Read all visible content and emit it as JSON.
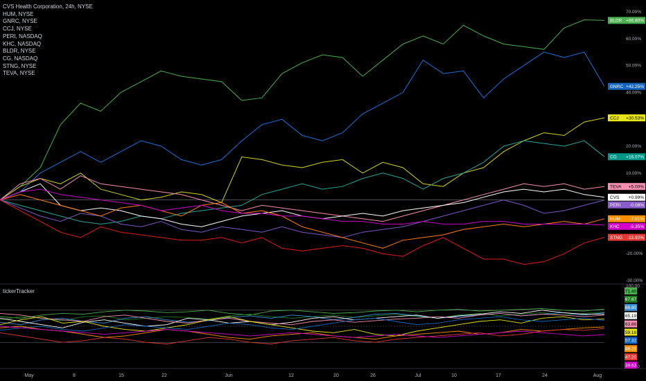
{
  "legend": {
    "items": [
      "CVS Health Corporation, 24h, NYSE",
      "HUM, NYSE",
      "GNRC, NYSE",
      "CCJ, NYSE",
      "PERI, NASDAQ",
      "KHC, NASDAQ",
      "BLDR, NYSE",
      "CG, NASDAQ",
      "STNG, NYSE",
      "TEVA, NYSE"
    ]
  },
  "indicator": {
    "title": "tickerTracker"
  },
  "chart_data": [
    {
      "type": "line",
      "x_labels": [
        "May",
        "8",
        "15",
        "22",
        "Jun",
        "12",
        "20",
        "26",
        "Jul",
        "10",
        "17",
        "24",
        "Aug"
      ],
      "y_axis": {
        "ticks": [
          "70.00%",
          "60.00%",
          "50.00%",
          "40.00%",
          "30.00%",
          "20.00%",
          "10.00%",
          "-10.00%",
          "-20.00%",
          "-30.00%"
        ],
        "ylim": [
          -30,
          70
        ],
        "unit": "%"
      },
      "grid": false,
      "series": [
        {
          "name": "BLDR",
          "color": "#4caf50",
          "label": "+66.80%",
          "tag_color": "#4caf50",
          "values": [
            0,
            5,
            12,
            28,
            36,
            33,
            40,
            44,
            48,
            46,
            45,
            44,
            37,
            38,
            47,
            51,
            54,
            53,
            46,
            52,
            58,
            61,
            58,
            65,
            61,
            58,
            57,
            56,
            64,
            67,
            66.8
          ],
          "last": 66.8
        },
        {
          "name": "GNRC",
          "color": "#1e6fd9",
          "label": "+42.25%",
          "tag_color": "#1565c0",
          "values": [
            0,
            3,
            10,
            14,
            18,
            14,
            18,
            22,
            20,
            15,
            13,
            15,
            22,
            28,
            30,
            24,
            22,
            25,
            32,
            36,
            40,
            52,
            47,
            48,
            38,
            45,
            50,
            55,
            53,
            55,
            42.25
          ],
          "last": 42.25
        },
        {
          "name": "CCJ",
          "color": "#d4d420",
          "label": "+30.53%",
          "tag_color": "#e8e51a",
          "values": [
            0,
            5,
            8,
            6,
            10,
            4,
            2,
            0,
            1,
            3,
            2,
            -1,
            16,
            15,
            13,
            12,
            14,
            15,
            10,
            14,
            12,
            6,
            5,
            10,
            12,
            18,
            22,
            25,
            24,
            29,
            30.53
          ],
          "last": 30.53
        },
        {
          "name": "CG",
          "color": "#26a69a",
          "label": "+16.07%",
          "tag_color": "#009688",
          "values": [
            0,
            -2,
            -4,
            -6,
            -8,
            -9,
            -8,
            -6,
            -7,
            -5,
            -4,
            -3,
            -2,
            2,
            4,
            6,
            4,
            5,
            8,
            10,
            8,
            4,
            8,
            10,
            14,
            20,
            22,
            21,
            20,
            22,
            16.07
          ],
          "last": 16.07
        },
        {
          "name": "TEVA",
          "color": "#f48fb1",
          "label": "+5.00%",
          "tag_color": "#f48fb1",
          "values": [
            0,
            6,
            8,
            4,
            9,
            6,
            5,
            4,
            3,
            2,
            0,
            -2,
            -4,
            -2,
            -3,
            -4,
            -5,
            -6,
            -7,
            -8,
            -6,
            -4,
            -2,
            0,
            2,
            4,
            6,
            5,
            6,
            4,
            5.0
          ],
          "last": 5.0
        },
        {
          "name": "CVS",
          "color": "#ffffff",
          "label": "+0.99%",
          "tag_color": "#ffffff",
          "values": [
            0,
            3,
            6,
            -2,
            -4,
            -3,
            -4,
            -6,
            -7,
            -9,
            -10,
            -8,
            -6,
            -5,
            -4,
            -6,
            -7,
            -6,
            -5,
            -6,
            -4,
            -3,
            -2,
            -1,
            1,
            3,
            4,
            3,
            4,
            2,
            0.99
          ],
          "last": 0.99
        },
        {
          "name": "PERI",
          "color": "#7e57c2",
          "label": "-0.08%",
          "tag_color": "#8a5cc9",
          "values": [
            0,
            -3,
            -6,
            -8,
            -5,
            -6,
            -9,
            -10,
            -8,
            -11,
            -12,
            -10,
            -11,
            -12,
            -10,
            -12,
            -13,
            -14,
            -12,
            -11,
            -10,
            -8,
            -6,
            -4,
            -2,
            0,
            -2,
            -5,
            -4,
            -2,
            -0.08
          ],
          "last": -0.08
        },
        {
          "name": "HUM",
          "color": "#ff7f11",
          "label": "-7.01%",
          "tag_color": "#ff8f00",
          "values": [
            0,
            2,
            0,
            -2,
            -4,
            -6,
            -3,
            -2,
            -4,
            -6,
            -2,
            -1,
            -5,
            -4,
            -6,
            -10,
            -12,
            -14,
            -16,
            -18,
            -15,
            -14,
            -13,
            -11,
            -10,
            -9,
            -10,
            -9,
            -8,
            -9,
            -7.01
          ],
          "last": -7.01
        },
        {
          "name": "KHC",
          "color": "#cc00cc",
          "label": "-9.35%",
          "tag_color": "#d500c9",
          "values": [
            0,
            3,
            4,
            2,
            1,
            0,
            -1,
            -2,
            -4,
            -3,
            -2,
            -4,
            -5,
            -5,
            -6,
            -6,
            -7,
            -8,
            -8,
            -9,
            -9,
            -8,
            -9,
            -9,
            -8,
            -8,
            -9,
            -9,
            -9,
            -9,
            -9.35
          ],
          "last": -9.35
        },
        {
          "name": "STNG",
          "color": "#e01b1b",
          "label": "-13.92%",
          "tag_color": "#e53935",
          "values": [
            0,
            -4,
            -8,
            -12,
            -14,
            -10,
            -12,
            -13,
            -14,
            -15,
            -15,
            -14,
            -16,
            -14,
            -18,
            -19,
            -18,
            -17,
            -18,
            -20,
            -21,
            -17,
            -14,
            -18,
            -22,
            -22,
            -24,
            -23,
            -20,
            -16,
            -13.92
          ],
          "last": -13.92
        }
      ]
    },
    {
      "type": "line",
      "title": "tickerTracker",
      "y_axis": {
        "ticks": [
          "100.00",
          "0.0000"
        ],
        "ylim": [
          0,
          100
        ]
      },
      "value_tags": [
        {
          "value": "71.40",
          "color": "#4caf50"
        },
        {
          "value": "67.87",
          "color": "#1e7a1e"
        },
        {
          "value": "66.80",
          "color": "#3d8fd9"
        },
        {
          "value": "65.19",
          "color": "#ffffff"
        },
        {
          "value": "63.86",
          "color": "#f48fb1"
        },
        {
          "value": "59.18",
          "color": "#e8e51a"
        },
        {
          "value": "57.32",
          "color": "#1565c0"
        },
        {
          "value": "49.25",
          "color": "#ff8f00"
        },
        {
          "value": "47.20",
          "color": "#e53935"
        },
        {
          "value": "39.63",
          "color": "#d500c9"
        }
      ],
      "series": [
        {
          "color": "#4caf50",
          "values": [
            62,
            60,
            64,
            66,
            65,
            68,
            70,
            69,
            67,
            68,
            70,
            66,
            64,
            69,
            70,
            68,
            66,
            67,
            69,
            70,
            68,
            70,
            71,
            69,
            70,
            71,
            72,
            70,
            69,
            71.4
          ]
        },
        {
          "color": "#1e7a1e",
          "values": [
            58,
            62,
            60,
            57,
            62,
            63,
            58,
            60,
            62,
            61,
            59,
            63,
            65,
            62,
            60,
            62,
            64,
            61,
            63,
            65,
            62,
            60,
            64,
            66,
            63,
            65,
            67,
            64,
            66,
            67.87
          ]
        },
        {
          "color": "#3d8fd9",
          "values": [
            55,
            52,
            58,
            60,
            56,
            54,
            60,
            62,
            58,
            55,
            57,
            61,
            63,
            60,
            64,
            62,
            58,
            61,
            65,
            66,
            63,
            60,
            62,
            64,
            66,
            63,
            65,
            67,
            64,
            66.8
          ]
        },
        {
          "color": "#ffffff",
          "values": [
            60,
            56,
            52,
            48,
            55,
            58,
            54,
            50,
            52,
            60,
            58,
            54,
            56,
            52,
            55,
            60,
            62,
            58,
            60,
            62,
            64,
            60,
            63,
            65,
            68,
            66,
            70,
            67,
            65,
            65.19
          ]
        },
        {
          "color": "#f48fb1",
          "values": [
            66,
            64,
            60,
            58,
            56,
            62,
            64,
            60,
            56,
            54,
            58,
            60,
            56,
            54,
            52,
            56,
            58,
            55,
            57,
            59,
            60,
            62,
            60,
            64,
            66,
            63,
            65,
            64,
            62,
            63.86
          ]
        },
        {
          "color": "#e8e51a",
          "values": [
            52,
            58,
            62,
            54,
            56,
            50,
            46,
            44,
            48,
            52,
            58,
            62,
            56,
            52,
            48,
            44,
            42,
            46,
            40,
            38,
            44,
            48,
            52,
            56,
            58,
            54,
            60,
            62,
            58,
            59.18
          ]
        },
        {
          "color": "#1565c0",
          "values": [
            45,
            48,
            50,
            46,
            44,
            48,
            52,
            50,
            48,
            46,
            50,
            54,
            52,
            48,
            46,
            50,
            54,
            58,
            60,
            56,
            52,
            54,
            58,
            60,
            62,
            58,
            56,
            58,
            60,
            57.32
          ]
        },
        {
          "color": "#ff8f00",
          "values": [
            48,
            50,
            46,
            44,
            40,
            36,
            38,
            42,
            46,
            44,
            40,
            36,
            34,
            38,
            40,
            42,
            38,
            36,
            34,
            38,
            40,
            42,
            44,
            40,
            42,
            46,
            44,
            46,
            48,
            49.25
          ]
        },
        {
          "color": "#e53935",
          "values": [
            42,
            38,
            34,
            30,
            32,
            36,
            34,
            30,
            28,
            32,
            36,
            34,
            30,
            28,
            32,
            34,
            36,
            32,
            30,
            34,
            36,
            38,
            40,
            42,
            38,
            40,
            44,
            46,
            45,
            47.2
          ]
        },
        {
          "color": "#d500c9",
          "values": [
            50,
            48,
            46,
            44,
            42,
            40,
            42,
            44,
            46,
            44,
            42,
            40,
            38,
            40,
            42,
            40,
            38,
            36,
            38,
            40,
            38,
            36,
            38,
            40,
            42,
            44,
            42,
            40,
            38,
            39.63
          ]
        }
      ]
    }
  ]
}
